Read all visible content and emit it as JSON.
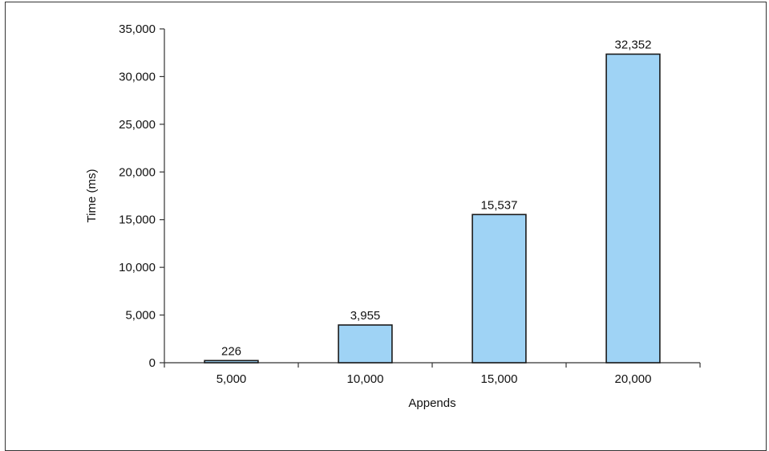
{
  "chart_data": {
    "type": "bar",
    "categories": [
      "5,000",
      "10,000",
      "15,000",
      "20,000"
    ],
    "values": [
      226,
      3955,
      15537,
      32352
    ],
    "value_labels": [
      "226",
      "3,955",
      "15,537",
      "32,352"
    ],
    "xlabel": "Appends",
    "ylabel": "Time (ms)",
    "ylim": [
      0,
      35000
    ],
    "yticks": [
      0,
      5000,
      10000,
      15000,
      20000,
      25000,
      30000,
      35000
    ],
    "ytick_labels": [
      "0",
      "5,000",
      "10,000",
      "15,000",
      "20,000",
      "25,000",
      "30,000",
      "35,000"
    ],
    "grid": false,
    "legend": "none",
    "colors": {
      "bar_fill": "#9fd3f5",
      "bar_stroke": "#1a1a1a",
      "axis": "#333333"
    }
  }
}
